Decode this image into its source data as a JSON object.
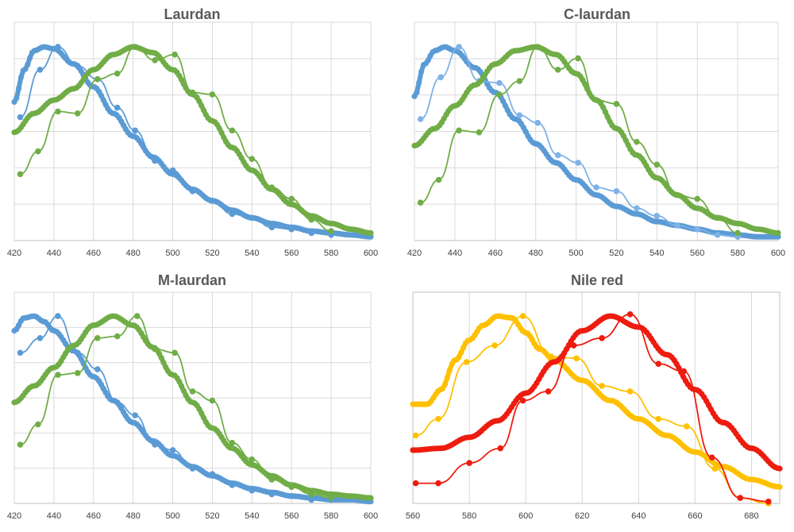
{
  "colors": {
    "blue": "#5b9bd5",
    "green": "#70ad47",
    "red": "#ee1c0f",
    "yellow": "#ffc000",
    "grid": "#d9d9d9",
    "axis": "#bfbfbf",
    "title": "#595959"
  },
  "chart_data": [
    {
      "type": "line",
      "title": "Laurdan",
      "xlabel": "",
      "ylabel": "",
      "xlim": [
        420,
        600
      ],
      "ylim": [
        0,
        1.15
      ],
      "xticks": [
        "420",
        "440",
        "460",
        "480",
        "500",
        "520",
        "540",
        "560",
        "580",
        "600"
      ],
      "grid": "vertical and horizontal",
      "series": [
        {
          "color": "#5b9bd5",
          "style": "dense",
          "x": [
            420,
            425,
            430,
            435,
            440,
            450,
            460,
            470,
            480,
            490,
            500,
            510,
            520,
            530,
            540,
            550,
            560,
            570,
            580,
            590,
            600
          ],
          "y": [
            0.73,
            0.9,
            1.0,
            1.02,
            1.01,
            0.93,
            0.81,
            0.67,
            0.55,
            0.44,
            0.35,
            0.27,
            0.21,
            0.16,
            0.12,
            0.09,
            0.07,
            0.05,
            0.04,
            0.03,
            0.02
          ]
        },
        {
          "color": "#5b9bd5",
          "style": "markers",
          "x": [
            423,
            433,
            442,
            452,
            462,
            472,
            481,
            491,
            500,
            510,
            520,
            530,
            540,
            550,
            560,
            570,
            580
          ],
          "y": [
            0.65,
            0.9,
            1.02,
            0.92,
            0.85,
            0.7,
            0.58,
            0.42,
            0.37,
            0.26,
            0.21,
            0.14,
            0.12,
            0.07,
            0.06,
            0.04,
            0.03
          ]
        },
        {
          "color": "#70ad47",
          "style": "dense",
          "x": [
            420,
            430,
            440,
            450,
            460,
            470,
            480,
            490,
            500,
            510,
            520,
            530,
            540,
            550,
            560,
            570,
            580,
            590,
            600
          ],
          "y": [
            0.57,
            0.67,
            0.74,
            0.8,
            0.9,
            0.98,
            1.02,
            0.99,
            0.9,
            0.77,
            0.63,
            0.49,
            0.37,
            0.27,
            0.19,
            0.13,
            0.09,
            0.06,
            0.04
          ]
        },
        {
          "color": "#70ad47",
          "style": "markers",
          "x": [
            423,
            432,
            442,
            452,
            462,
            472,
            481,
            491,
            501,
            510,
            520,
            530,
            540,
            550,
            560,
            570,
            580
          ],
          "y": [
            0.35,
            0.47,
            0.68,
            0.67,
            0.85,
            0.88,
            1.02,
            0.95,
            0.98,
            0.78,
            0.77,
            0.58,
            0.43,
            0.28,
            0.22,
            0.11,
            0.05
          ]
        }
      ]
    },
    {
      "type": "line",
      "title": "C-laurdan",
      "xlabel": "",
      "ylabel": "",
      "xlim": [
        420,
        600
      ],
      "ylim": [
        0,
        1.15
      ],
      "xticks": [
        "420",
        "440",
        "460",
        "480",
        "500",
        "520",
        "540",
        "560",
        "580",
        "600"
      ],
      "grid": "vertical and horizontal",
      "series": [
        {
          "color": "#5b9bd5",
          "style": "dense",
          "x": [
            420,
            425,
            430,
            435,
            440,
            450,
            460,
            470,
            480,
            490,
            500,
            510,
            520,
            530,
            540,
            550,
            560,
            570,
            580,
            590,
            600
          ],
          "y": [
            0.76,
            0.93,
            1.0,
            1.02,
            1.0,
            0.91,
            0.78,
            0.64,
            0.51,
            0.41,
            0.32,
            0.24,
            0.18,
            0.14,
            0.1,
            0.08,
            0.06,
            0.04,
            0.03,
            0.02,
            0.02
          ]
        },
        {
          "color": "#7fb2e5",
          "style": "markers",
          "x": [
            423,
            433,
            442,
            452,
            462,
            472,
            481,
            491,
            501,
            510,
            520,
            530,
            540,
            550,
            560,
            570,
            580
          ],
          "y": [
            0.64,
            0.86,
            1.02,
            0.84,
            0.83,
            0.66,
            0.62,
            0.45,
            0.41,
            0.28,
            0.26,
            0.17,
            0.13,
            0.08,
            0.06,
            0.03,
            0.02
          ]
        },
        {
          "color": "#70ad47",
          "style": "dense",
          "x": [
            420,
            430,
            440,
            450,
            460,
            470,
            480,
            490,
            500,
            510,
            520,
            530,
            540,
            550,
            560,
            570,
            580,
            590,
            600
          ],
          "y": [
            0.5,
            0.59,
            0.71,
            0.82,
            0.93,
            1.0,
            1.02,
            0.98,
            0.88,
            0.74,
            0.59,
            0.45,
            0.33,
            0.24,
            0.17,
            0.12,
            0.09,
            0.06,
            0.04
          ]
        },
        {
          "color": "#70ad47",
          "style": "markers",
          "x": [
            423,
            432,
            442,
            452,
            462,
            472,
            481,
            491,
            501,
            510,
            520,
            530,
            540,
            550,
            560,
            570,
            580
          ],
          "y": [
            0.2,
            0.32,
            0.58,
            0.57,
            0.77,
            0.84,
            1.02,
            0.9,
            0.96,
            0.74,
            0.72,
            0.52,
            0.4,
            0.24,
            0.22,
            0.12,
            0.04
          ]
        }
      ]
    },
    {
      "type": "line",
      "title": "M-laurdan",
      "xlabel": "",
      "ylabel": "",
      "xlim": [
        420,
        600
      ],
      "ylim": [
        0,
        1.15
      ],
      "xticks": [
        "420",
        "440",
        "460",
        "480",
        "500",
        "520",
        "540",
        "560",
        "580",
        "600"
      ],
      "grid": "vertical and horizontal",
      "series": [
        {
          "color": "#5b9bd5",
          "style": "dense",
          "x": [
            420,
            425,
            430,
            435,
            440,
            450,
            460,
            470,
            480,
            490,
            500,
            510,
            520,
            530,
            540,
            550,
            560,
            570,
            580,
            590,
            600
          ],
          "y": [
            0.94,
            1.01,
            1.02,
            0.99,
            0.94,
            0.83,
            0.69,
            0.56,
            0.44,
            0.34,
            0.26,
            0.2,
            0.15,
            0.11,
            0.08,
            0.06,
            0.04,
            0.03,
            0.02,
            0.02,
            0.01
          ]
        },
        {
          "color": "#5b9bd5",
          "style": "markers",
          "x": [
            423,
            433,
            442,
            452,
            462,
            472,
            481,
            491,
            500,
            510,
            520,
            530,
            540,
            550,
            560,
            570,
            580
          ],
          "y": [
            0.82,
            0.9,
            1.02,
            0.82,
            0.73,
            0.55,
            0.48,
            0.32,
            0.29,
            0.19,
            0.16,
            0.1,
            0.07,
            0.05,
            0.04,
            0.02,
            0.02
          ]
        },
        {
          "color": "#70ad47",
          "style": "dense",
          "x": [
            420,
            430,
            440,
            450,
            460,
            470,
            480,
            490,
            500,
            510,
            520,
            530,
            540,
            550,
            560,
            570,
            580,
            590,
            600
          ],
          "y": [
            0.55,
            0.64,
            0.74,
            0.86,
            0.97,
            1.02,
            0.97,
            0.85,
            0.7,
            0.55,
            0.41,
            0.3,
            0.21,
            0.15,
            0.1,
            0.07,
            0.05,
            0.04,
            0.03
          ]
        },
        {
          "color": "#70ad47",
          "style": "markers",
          "x": [
            423,
            432,
            442,
            452,
            462,
            472,
            482,
            491,
            501,
            510,
            520,
            530,
            540,
            550,
            560,
            570,
            580
          ],
          "y": [
            0.32,
            0.43,
            0.7,
            0.71,
            0.9,
            0.91,
            1.02,
            0.84,
            0.82,
            0.61,
            0.56,
            0.33,
            0.24,
            0.13,
            0.09,
            0.05,
            0.03
          ]
        }
      ]
    },
    {
      "type": "line",
      "title": "Nile red",
      "xlabel": "",
      "ylabel": "",
      "xlim": [
        560,
        690
      ],
      "ylim": [
        0,
        1.15
      ],
      "xticks": [
        "560",
        "580",
        "600",
        "620",
        "640",
        "660",
        "680"
      ],
      "grid": "vertical only, boxed",
      "series": [
        {
          "color": "#ffc000",
          "style": "dense",
          "x": [
            560,
            565,
            570,
            575,
            580,
            585,
            590,
            595,
            600,
            605,
            610,
            620,
            630,
            640,
            650,
            660,
            670,
            680,
            690
          ],
          "y": [
            0.54,
            0.54,
            0.62,
            0.78,
            0.89,
            0.97,
            1.02,
            1.01,
            0.93,
            0.84,
            0.78,
            0.67,
            0.56,
            0.46,
            0.37,
            0.28,
            0.2,
            0.13,
            0.09
          ]
        },
        {
          "color": "#ffc000",
          "style": "markers",
          "x": [
            561,
            569,
            579,
            589,
            599,
            609,
            618,
            627,
            637,
            647,
            657,
            667,
            676,
            686
          ],
          "y": [
            0.37,
            0.46,
            0.77,
            0.86,
            1.02,
            0.8,
            0.79,
            0.64,
            0.61,
            0.46,
            0.42,
            0.19,
            0.03,
            0.0
          ]
        },
        {
          "color": "#ee1c0f",
          "style": "dense",
          "x": [
            560,
            570,
            580,
            590,
            600,
            610,
            620,
            630,
            640,
            650,
            660,
            670,
            680,
            690
          ],
          "y": [
            0.29,
            0.3,
            0.36,
            0.45,
            0.6,
            0.77,
            0.94,
            1.02,
            0.96,
            0.81,
            0.62,
            0.44,
            0.3,
            0.19
          ]
        },
        {
          "color": "#ee1c0f",
          "style": "markers",
          "x": [
            561,
            569,
            580,
            591,
            599,
            608,
            617,
            627,
            637,
            647,
            656,
            666,
            676,
            686
          ],
          "y": [
            0.11,
            0.11,
            0.22,
            0.3,
            0.56,
            0.61,
            0.86,
            0.9,
            1.03,
            0.76,
            0.72,
            0.25,
            0.03,
            0.01
          ]
        }
      ]
    }
  ]
}
